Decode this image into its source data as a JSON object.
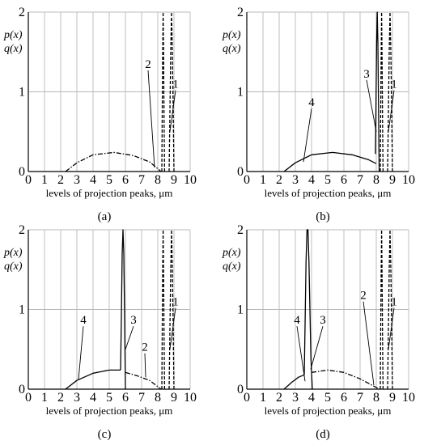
{
  "chart_data": [
    {
      "type": "line",
      "panel_label": "(a)",
      "panel_letter": "a",
      "ylabel_lines": [
        "p(x)",
        "q(x)"
      ],
      "xlabel": "levels of projection peaks, μm",
      "xlim": [
        0,
        10
      ],
      "ylim": [
        0,
        2
      ],
      "xticks": [
        "0",
        "1",
        "2",
        "3",
        "4",
        "5",
        "6",
        "7",
        "8",
        "9",
        "10"
      ],
      "yticks": [
        "0",
        "1",
        "2"
      ],
      "grid": true,
      "series": [
        {
          "curve": "1",
          "style": "dashed",
          "x": [
            8.7,
            8.72,
            8.76,
            8.8,
            8.85,
            8.9,
            8.95,
            9.0
          ],
          "y": [
            0,
            0.3,
            0.9,
            1.5,
            2.0,
            1.5,
            0.8,
            0
          ]
        },
        {
          "curve": "2",
          "style": "dashed",
          "x": [
            8.25,
            8.27,
            8.3,
            8.33,
            8.36,
            8.39,
            8.42
          ],
          "y": [
            0,
            0.6,
            1.4,
            2.0,
            1.4,
            0.6,
            0
          ]
        },
        {
          "curve": "dash-dot",
          "style": "dashdot",
          "x": [
            2.3,
            3.0,
            4.0,
            5.3,
            6.5,
            7.5,
            8.2
          ],
          "y": [
            0,
            0.11,
            0.21,
            0.24,
            0.2,
            0.12,
            0
          ]
        }
      ],
      "annotations": [
        {
          "text": "2",
          "x": 7.4,
          "y": 1.3,
          "tx": 7.8,
          "ty": 0.05
        },
        {
          "text": "1",
          "x": 9.1,
          "y": 1.05,
          "tx": 8.75,
          "ty": 0.5
        }
      ]
    },
    {
      "type": "line",
      "panel_label": "(b)",
      "panel_letter": "b",
      "ylabel_lines": [
        "p(x)",
        "q(x)"
      ],
      "xlabel": "levels of projection peaks, μm",
      "xlim": [
        0,
        10
      ],
      "ylim": [
        0,
        2
      ],
      "xticks": [
        "0",
        "1",
        "2",
        "3",
        "4",
        "5",
        "6",
        "7",
        "8",
        "9",
        "10"
      ],
      "yticks": [
        "0",
        "1",
        "2"
      ],
      "grid": true,
      "series": [
        {
          "curve": "1",
          "style": "dashed",
          "x": [
            8.7,
            8.72,
            8.76,
            8.8,
            8.85,
            8.9,
            8.95,
            9.0
          ],
          "y": [
            0,
            0.3,
            0.9,
            1.5,
            2.0,
            1.5,
            0.8,
            0
          ]
        },
        {
          "curve": "2",
          "style": "dashed",
          "x": [
            8.25,
            8.27,
            8.3,
            8.33,
            8.36,
            8.39,
            8.42
          ],
          "y": [
            0,
            0.6,
            1.4,
            2.0,
            1.4,
            0.6,
            0
          ]
        },
        {
          "curve": "3",
          "style": "solid",
          "x": [
            7.95,
            7.98,
            8.02,
            8.06,
            8.1,
            8.14,
            8.18
          ],
          "y": [
            0.22,
            0.8,
            1.6,
            2.0,
            1.6,
            0.8,
            0
          ]
        },
        {
          "curve": "4",
          "style": "solid",
          "x": [
            2.3,
            3.0,
            4.0,
            5.3,
            6.5,
            7.5,
            8.0
          ],
          "y": [
            0,
            0.11,
            0.21,
            0.24,
            0.21,
            0.15,
            0.1
          ]
        }
      ],
      "annotations": [
        {
          "text": "4",
          "x": 4.0,
          "y": 0.82,
          "tx": 3.5,
          "ty": 0.12
        },
        {
          "text": "3",
          "x": 7.4,
          "y": 1.18,
          "tx": 8.0,
          "ty": 0.5
        },
        {
          "text": "1",
          "x": 9.1,
          "y": 1.05,
          "tx": 8.75,
          "ty": 0.5
        }
      ]
    },
    {
      "type": "line",
      "panel_label": "(c)",
      "panel_letter": "c",
      "ylabel_lines": [
        "p(x)",
        "q(x)"
      ],
      "xlabel": "levels of projection peaks, μm",
      "xlim": [
        0,
        10
      ],
      "ylim": [
        0,
        2
      ],
      "xticks": [
        "0",
        "1",
        "2",
        "3",
        "4",
        "5",
        "6",
        "7",
        "8",
        "9",
        "10"
      ],
      "yticks": [
        "0",
        "1",
        "2"
      ],
      "grid": true,
      "series": [
        {
          "curve": "1",
          "style": "dashed",
          "x": [
            8.7,
            8.72,
            8.76,
            8.8,
            8.85,
            8.9,
            8.95,
            9.0
          ],
          "y": [
            0,
            0.3,
            0.9,
            1.5,
            2.0,
            1.5,
            0.8,
            0
          ]
        },
        {
          "curve": "2",
          "style": "dashed",
          "x": [
            8.25,
            8.27,
            8.3,
            8.33,
            8.36,
            8.39,
            8.42
          ],
          "y": [
            0,
            0.6,
            1.4,
            2.0,
            1.4,
            0.6,
            0
          ]
        },
        {
          "curve": "3",
          "style": "solid",
          "x": [
            5.7,
            5.75,
            5.8,
            5.85,
            5.9,
            5.95,
            6.0
          ],
          "y": [
            0.24,
            0.9,
            1.7,
            2.0,
            1.7,
            0.9,
            0
          ]
        },
        {
          "curve": "4",
          "style": "solid",
          "x": [
            2.3,
            3.0,
            4.0,
            5.0,
            5.7
          ],
          "y": [
            0,
            0.11,
            0.2,
            0.24,
            0.24
          ]
        },
        {
          "curve": "tail",
          "style": "dashdot",
          "x": [
            6.0,
            6.7,
            7.5,
            8.2
          ],
          "y": [
            0.21,
            0.17,
            0.11,
            0
          ]
        }
      ],
      "annotations": [
        {
          "text": "4",
          "x": 3.4,
          "y": 0.82,
          "tx": 3.1,
          "ty": 0.12
        },
        {
          "text": "3",
          "x": 6.5,
          "y": 0.82,
          "tx": 6.0,
          "ty": 0.5
        },
        {
          "text": "2",
          "x": 7.2,
          "y": 0.48,
          "tx": 7.25,
          "ty": 0.15
        },
        {
          "text": "1",
          "x": 9.1,
          "y": 1.05,
          "tx": 8.75,
          "ty": 0.5
        }
      ]
    },
    {
      "type": "line",
      "panel_label": "(d)",
      "panel_letter": "d",
      "ylabel_lines": [
        "p(x)",
        "q(x)"
      ],
      "xlabel": "levels of projection peaks, μm",
      "xlim": [
        0,
        10
      ],
      "ylim": [
        0,
        2
      ],
      "xticks": [
        "0",
        "1",
        "2",
        "3",
        "4",
        "5",
        "6",
        "7",
        "8",
        "9",
        "10"
      ],
      "yticks": [
        "0",
        "1",
        "2"
      ],
      "grid": true,
      "series": [
        {
          "curve": "1",
          "style": "dashed",
          "x": [
            8.7,
            8.72,
            8.76,
            8.8,
            8.85,
            8.9,
            8.95,
            9.0
          ],
          "y": [
            0,
            0.3,
            0.9,
            1.5,
            2.0,
            1.5,
            0.8,
            0
          ]
        },
        {
          "curve": "2",
          "style": "dashed",
          "x": [
            8.25,
            8.27,
            8.3,
            8.33,
            8.36,
            8.39,
            8.42
          ],
          "y": [
            0,
            0.6,
            1.4,
            2.0,
            1.4,
            0.6,
            0
          ]
        },
        {
          "curve": "3",
          "style": "solid",
          "x": [
            3.55,
            3.6,
            3.66,
            3.72,
            3.78,
            3.84,
            3.9,
            3.96,
            4.05
          ],
          "y": [
            0.18,
            0.8,
            1.6,
            2.0,
            2.0,
            1.6,
            1.0,
            0.4,
            0
          ]
        },
        {
          "curve": "4",
          "style": "solid",
          "x": [
            2.3,
            2.8,
            3.2,
            3.55
          ],
          "y": [
            0,
            0.09,
            0.15,
            0.18
          ]
        },
        {
          "curve": "tail",
          "style": "dashdot",
          "x": [
            4.0,
            5.0,
            6.0,
            7.0,
            8.2
          ],
          "y": [
            0.21,
            0.24,
            0.21,
            0.13,
            0
          ]
        }
      ],
      "annotations": [
        {
          "text": "4",
          "x": 3.1,
          "y": 0.82,
          "tx": 3.6,
          "ty": 0.1
        },
        {
          "text": "3",
          "x": 4.7,
          "y": 0.82,
          "tx": 3.95,
          "ty": 0.25
        },
        {
          "text": "2",
          "x": 7.2,
          "y": 1.13,
          "tx": 7.85,
          "ty": 0.05
        },
        {
          "text": "1",
          "x": 9.1,
          "y": 1.05,
          "tx": 8.75,
          "ty": 0.5
        }
      ]
    }
  ]
}
